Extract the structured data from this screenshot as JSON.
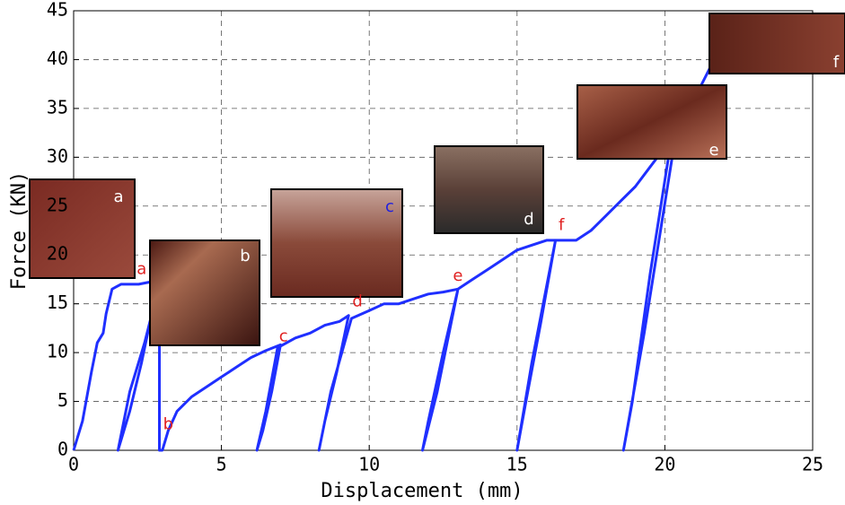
{
  "chart_data": {
    "type": "line",
    "xlabel": "Displacement (mm)",
    "ylabel": "Force (KN)",
    "xlim": [
      0,
      25
    ],
    "xticks": [
      0,
      5,
      10,
      15,
      20,
      25
    ],
    "ylim": [
      0,
      45
    ],
    "yticks": [
      0,
      5,
      10,
      15,
      20,
      25,
      30,
      35,
      40,
      45
    ],
    "grid": true,
    "series": [
      {
        "color": "#1f2fff",
        "x": [
          0,
          0.3,
          0.6,
          0.8,
          1.0,
          1.1,
          1.3,
          1.6,
          2.2,
          2.7,
          2.85,
          2.3,
          1.9,
          1.5,
          1.9,
          2.4,
          2.9,
          2.9,
          3.0,
          3.2,
          3.5,
          4.0,
          4.5,
          5.0,
          5.5,
          6.0,
          6.5,
          7.0,
          6.7,
          6.4,
          6.2,
          6.5,
          6.9,
          7.5,
          8.0,
          8.5,
          9.0,
          9.3,
          8.9,
          8.5,
          8.3,
          8.7,
          9.4,
          10.0,
          10.5,
          11.0,
          11.5,
          12.0,
          12.5,
          13.0,
          12.5,
          12.0,
          11.8,
          12.3,
          13.0,
          13.5,
          14.0,
          14.5,
          15.0,
          15.5,
          16.0,
          16.3,
          15.8,
          15.3,
          15.0,
          15.5,
          16.3,
          17.0,
          17.5,
          18.0,
          18.5,
          19.0,
          19.5,
          20.0,
          20.2,
          19.5,
          18.9,
          18.6,
          19.3,
          20.3,
          21.0,
          21.5,
          22.0
        ],
        "values": [
          0,
          3,
          8,
          11,
          12,
          14,
          16.5,
          17,
          17,
          17.3,
          17,
          9,
          4,
          0,
          6,
          11,
          17,
          0,
          0,
          2,
          4,
          5.5,
          6.5,
          7.5,
          8.5,
          9.5,
          10.2,
          10.8,
          6,
          2,
          0,
          4,
          10.5,
          11.5,
          12,
          12.8,
          13.2,
          13.8,
          8,
          3,
          0,
          6,
          13.5,
          14.3,
          15,
          15,
          15.5,
          16,
          16.2,
          16.5,
          10,
          3,
          0,
          6,
          16.5,
          17.5,
          18.5,
          19.5,
          20.5,
          21,
          21.5,
          21.5,
          13,
          5,
          0,
          9,
          21.5,
          21.5,
          22.5,
          24,
          25.5,
          27,
          29,
          31,
          31.5,
          18,
          5,
          0,
          12,
          31,
          36,
          39,
          42.5
        ]
      }
    ],
    "annotations": [
      {
        "text": "a",
        "x": 2.3,
        "y": 18.5,
        "color": "#e02020"
      },
      {
        "text": "b",
        "x": 3.2,
        "y": 2.6,
        "color": "#e02020"
      },
      {
        "text": "c",
        "x": 7.1,
        "y": 11.6,
        "color": "#e02020"
      },
      {
        "text": "d",
        "x": 9.6,
        "y": 15.2,
        "color": "#e02020"
      },
      {
        "text": "e",
        "x": 13.0,
        "y": 17.8,
        "color": "#e02020"
      },
      {
        "text": "f",
        "x": 16.5,
        "y": 23.0,
        "color": "#e02020"
      }
    ],
    "inset_labels": [
      {
        "text": "a",
        "color": "#ffffff"
      },
      {
        "text": "b",
        "color": "#ffffff"
      },
      {
        "text": "c",
        "color": "#2020e0"
      },
      {
        "text": "d",
        "color": "#ffffff"
      },
      {
        "text": "e",
        "color": "#ffffff"
      },
      {
        "text": "f",
        "color": "#ffffff"
      }
    ]
  }
}
